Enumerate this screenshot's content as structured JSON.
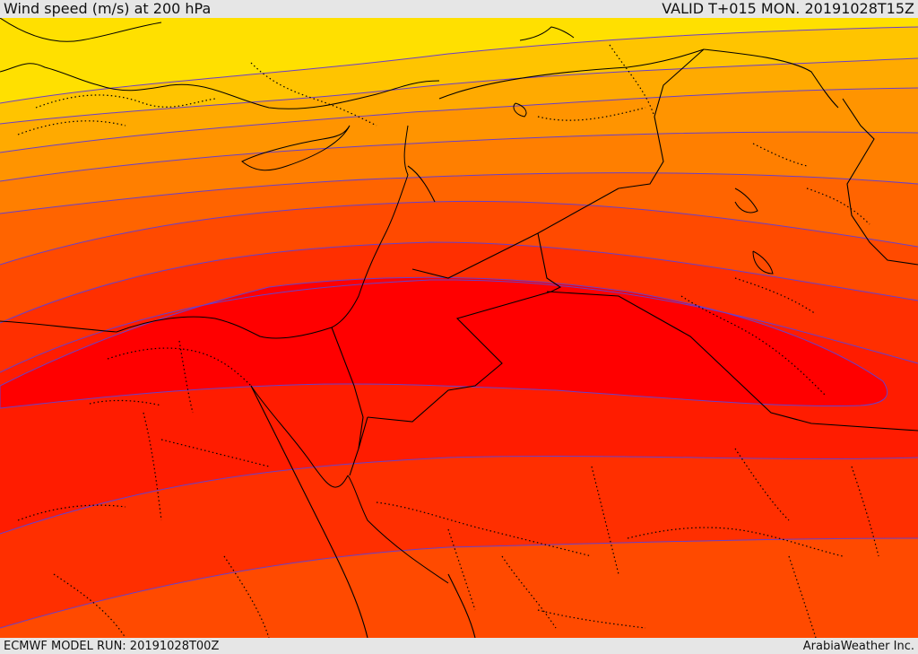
{
  "header": {
    "title": "Wind speed (m/s) at 200 hPa",
    "valid": "VALID T+015 MON. 20191028T15Z"
  },
  "footer": {
    "model_run": "ECMWF MODEL RUN: 20191028T00Z",
    "credit": "ArabiaWeather Inc."
  },
  "map": {
    "variable": "wind speed",
    "units": "m/s",
    "level": "200 hPa",
    "band_colors": [
      "#ffe000",
      "#ffc400",
      "#ffaa00",
      "#ff9400",
      "#ff7f00",
      "#ff6400",
      "#ff4a00",
      "#ff2f00",
      "#ff1c00",
      "#ff0000"
    ],
    "contour_color": "#6a3fc8",
    "border_color": "#000000",
    "jet_core_color": "#ff0000"
  }
}
